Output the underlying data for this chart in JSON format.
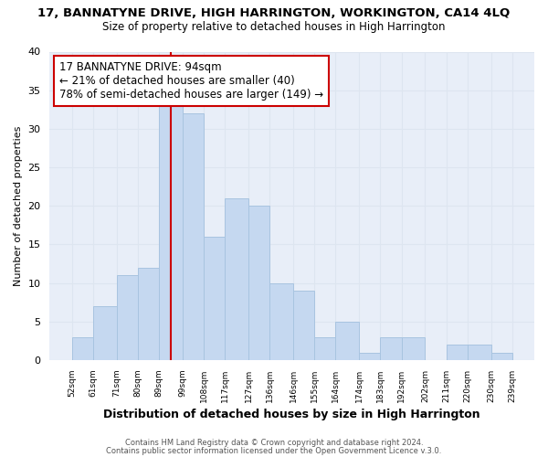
{
  "title": "17, BANNATYNE DRIVE, HIGH HARRINGTON, WORKINGTON, CA14 4LQ",
  "subtitle": "Size of property relative to detached houses in High Harrington",
  "xlabel": "Distribution of detached houses by size in High Harrington",
  "ylabel": "Number of detached properties",
  "bar_color": "#c5d8f0",
  "bar_edgecolor": "#a8c4e0",
  "grid_color": "#dde5f0",
  "bg_color": "#e8eef8",
  "fig_bg": "#ffffff",
  "bins": [
    52,
    61,
    71,
    80,
    89,
    99,
    108,
    117,
    127,
    136,
    146,
    155,
    164,
    174,
    183,
    192,
    202,
    211,
    220,
    230,
    239
  ],
  "counts": [
    3,
    7,
    11,
    12,
    33,
    32,
    16,
    21,
    20,
    10,
    9,
    3,
    5,
    1,
    3,
    3,
    0,
    2,
    2,
    1
  ],
  "property_size": 94,
  "vline_color": "#cc0000",
  "annotation_line1": "17 BANNATYNE DRIVE: 94sqm",
  "annotation_line2": "← 21% of detached houses are smaller (40)",
  "annotation_line3": "78% of semi-detached houses are larger (149) →",
  "annotation_box_color": "#ffffff",
  "annotation_box_edgecolor": "#cc0000",
  "ylim": [
    0,
    40
  ],
  "yticks": [
    0,
    5,
    10,
    15,
    20,
    25,
    30,
    35,
    40
  ],
  "tick_labels": [
    "52sqm",
    "61sqm",
    "71sqm",
    "80sqm",
    "89sqm",
    "99sqm",
    "108sqm",
    "117sqm",
    "127sqm",
    "136sqm",
    "146sqm",
    "155sqm",
    "164sqm",
    "174sqm",
    "183sqm",
    "192sqm",
    "202sqm",
    "211sqm",
    "220sqm",
    "230sqm",
    "239sqm"
  ],
  "footer1": "Contains HM Land Registry data © Crown copyright and database right 2024.",
  "footer2": "Contains public sector information licensed under the Open Government Licence v.3.0."
}
